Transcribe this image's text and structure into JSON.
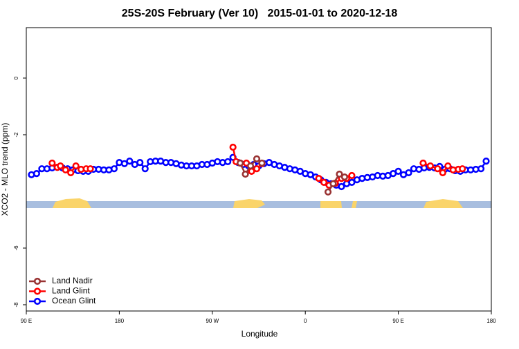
{
  "chart_data": {
    "type": "line",
    "title": "25S-20S February (Ver 10)   2015-01-01 to 2020-12-18",
    "x_label": "Longitude",
    "y_label": "XCO2 - MLO trend (ppm)",
    "xlim": [
      90,
      540
    ],
    "ylim": [
      -8.22,
      1.78
    ],
    "xticks": [
      {
        "value": 90,
        "label": "90 E"
      },
      180,
      {
        "value": 270,
        "label": "90 W"
      },
      {
        "value": 360,
        "label": "0"
      },
      {
        "value": 450,
        "label": "90 E"
      },
      {
        "value": 540,
        "label": "180"
      }
    ],
    "yticks": [
      0,
      -2,
      -6,
      -8
    ],
    "legend": "bottom-left",
    "series": [
      {
        "name": "Land Nadir",
        "color": "#993333",
        "x": [
          297,
          302,
          307,
          313,
          318,
          null,
          382,
          387,
          393,
          398
        ],
        "values": [
          -3.0,
          -3.39,
          -3.1,
          -2.85,
          -3.0,
          null,
          -4.02,
          -3.73,
          -3.39,
          -3.49
        ]
      },
      {
        "name": "Land Glint",
        "color": "#ff0000",
        "x": [
          115,
          120,
          123,
          128,
          133,
          138,
          143,
          148,
          152,
          null,
          290,
          293,
          297,
          303,
          308,
          313,
          318,
          null,
          373,
          378,
          383,
          389,
          395,
          400,
          405,
          null,
          474,
          481,
          488,
          493,
          498,
          503,
          508,
          512
        ],
        "values": [
          -3.0,
          -3.15,
          -3.1,
          -3.24,
          -3.34,
          -3.1,
          -3.22,
          -3.2,
          -3.2,
          null,
          -2.44,
          -2.95,
          -3.0,
          -3.0,
          -3.29,
          -3.2,
          -3.02,
          null,
          -3.54,
          -3.68,
          -3.78,
          -3.71,
          -3.54,
          -3.54,
          -3.44,
          null,
          -3.0,
          -3.1,
          -3.2,
          -3.34,
          -3.1,
          -3.24,
          -3.22,
          -3.2
        ]
      },
      {
        "name": "Ocean Glint",
        "color": "#0000ff",
        "x": [
          95,
          100,
          105,
          110,
          115,
          120,
          125,
          130,
          135,
          140,
          145,
          150,
          155,
          160,
          165,
          170,
          175,
          180,
          185,
          190,
          195,
          200,
          205,
          210,
          215,
          220,
          225,
          230,
          235,
          240,
          245,
          250,
          255,
          260,
          265,
          270,
          275,
          280,
          285,
          290,
          295,
          300,
          305,
          310,
          315,
          320,
          325,
          330,
          335,
          340,
          345,
          350,
          355,
          360,
          365,
          370,
          375,
          380,
          385,
          390,
          395,
          400,
          405,
          410,
          415,
          420,
          425,
          430,
          435,
          440,
          445,
          450,
          455,
          460,
          465,
          470,
          475,
          480,
          485,
          490,
          495,
          500,
          505,
          510,
          515,
          520,
          525,
          530,
          535
        ],
        "values": [
          -3.41,
          -3.37,
          -3.2,
          -3.2,
          -3.17,
          -3.15,
          -3.17,
          -3.2,
          -3.24,
          -3.27,
          -3.29,
          -3.29,
          -3.22,
          -3.22,
          -3.24,
          -3.24,
          -3.2,
          -2.98,
          -3.02,
          -2.93,
          -3.05,
          -2.98,
          -3.2,
          -2.95,
          -2.93,
          -2.93,
          -2.98,
          -2.98,
          -3.02,
          -3.07,
          -3.1,
          -3.1,
          -3.1,
          -3.05,
          -3.05,
          -3.0,
          -2.95,
          -2.98,
          -2.95,
          -2.8,
          -2.98,
          -3.05,
          -3.1,
          -3.05,
          -3.1,
          -3.02,
          -2.98,
          -3.05,
          -3.1,
          -3.15,
          -3.2,
          -3.24,
          -3.29,
          -3.37,
          -3.41,
          -3.49,
          -3.59,
          -3.68,
          -3.73,
          -3.78,
          -3.83,
          -3.73,
          -3.68,
          -3.59,
          -3.54,
          -3.51,
          -3.49,
          -3.44,
          -3.46,
          -3.44,
          -3.37,
          -3.29,
          -3.41,
          -3.34,
          -3.2,
          -3.22,
          -3.17,
          -3.15,
          -3.17,
          -3.12,
          -3.22,
          -3.2,
          -3.27,
          -3.29,
          -3.24,
          -3.24,
          -3.22,
          -3.2,
          -2.93
        ]
      }
    ]
  }
}
